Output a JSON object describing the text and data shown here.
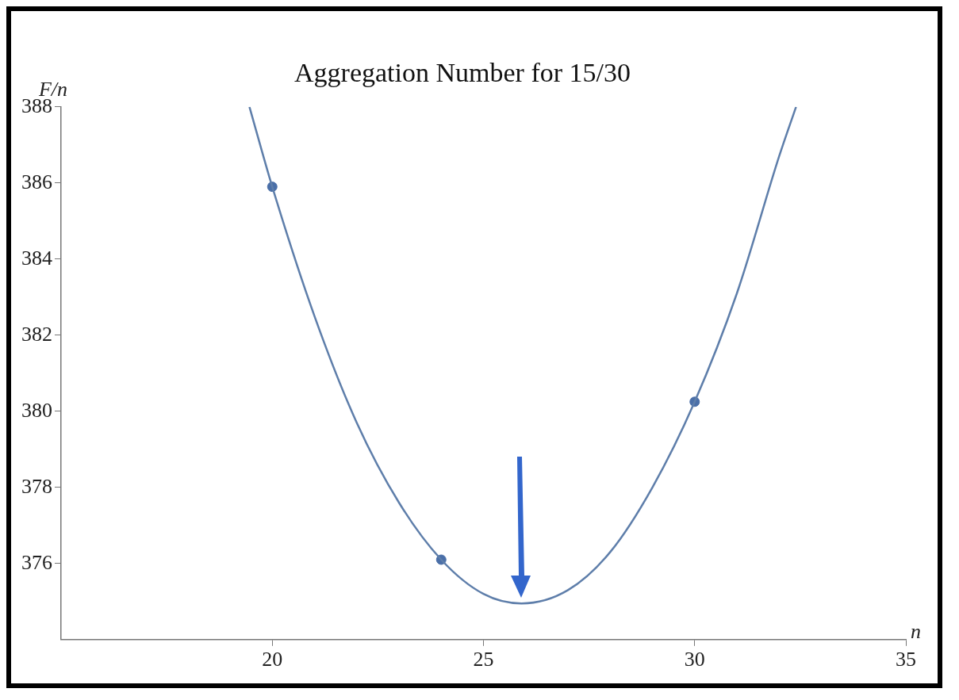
{
  "chart_data": {
    "type": "line",
    "title": "Aggregation Number for 15/30",
    "xlabel": "n",
    "ylabel": "F/n",
    "xlim": [
      15,
      35
    ],
    "xticks": [
      20,
      25,
      30,
      35
    ],
    "ylim": [
      374,
      388
    ],
    "yticks": [
      376,
      378,
      380,
      382,
      384,
      386,
      388
    ],
    "grid": false,
    "legend": false,
    "series": [
      {
        "marker": "none",
        "color": "#5e7eaa",
        "x": [
          19.46,
          20,
          21,
          22,
          23,
          24,
          25,
          25.9,
          27,
          28,
          29,
          30,
          31,
          32,
          32.4
        ],
        "values": [
          388,
          385.9,
          382.5,
          379.7,
          377.6,
          376.1,
          375.2,
          374.95,
          375.3,
          376.3,
          378,
          380.25,
          383.1,
          386.7,
          388
        ]
      },
      {
        "type": "scatter",
        "marker": "circle",
        "color": "#4a6fa8",
        "x": [
          20,
          24,
          30
        ],
        "values": [
          385.9,
          376.1,
          380.25
        ]
      }
    ]
  }
}
